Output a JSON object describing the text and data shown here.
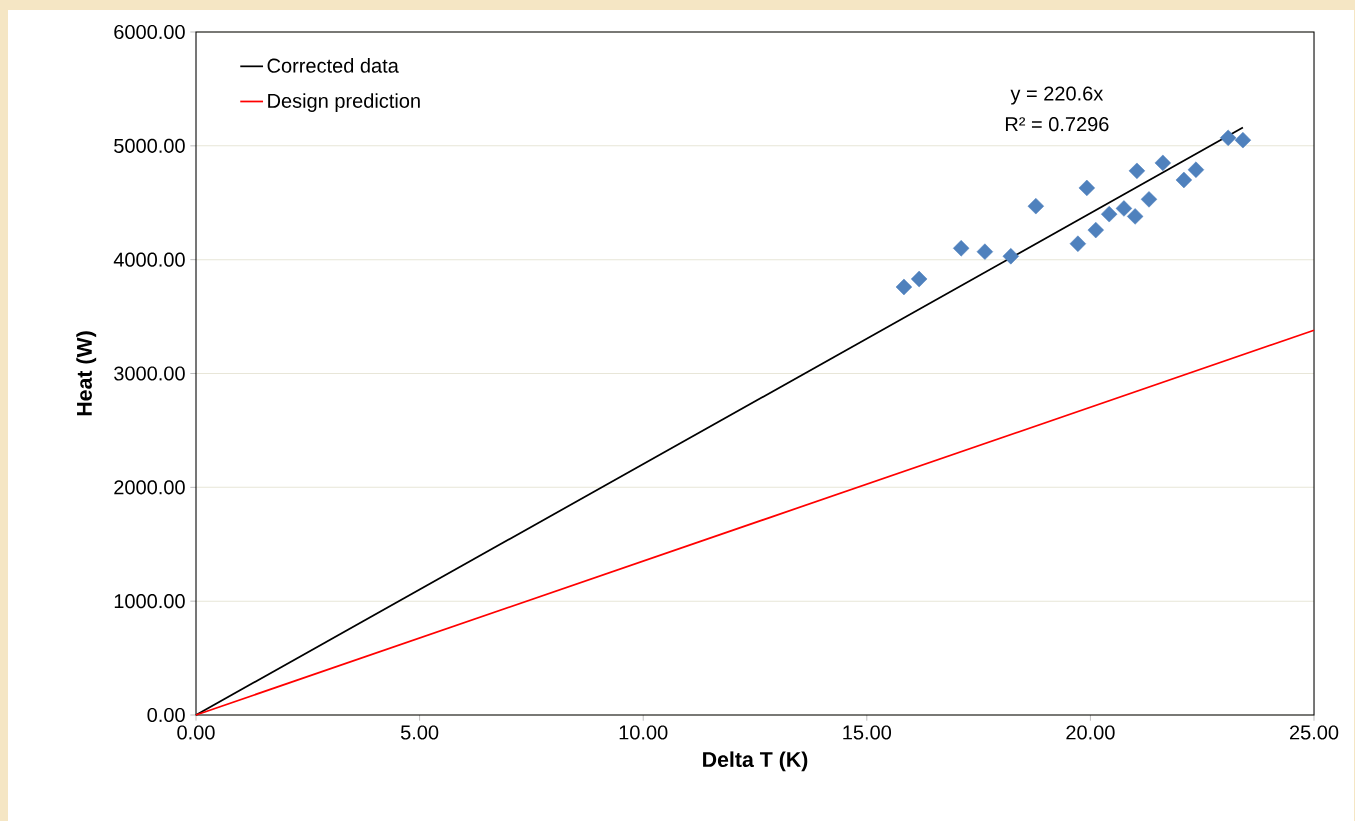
{
  "chart_data": {
    "type": "scatter",
    "xlabel": "Delta T (K)",
    "ylabel": "Heat (W)",
    "xlim": [
      0,
      25
    ],
    "ylim": [
      0,
      6000
    ],
    "xticks": [
      {
        "value": 0,
        "label": "0.00"
      },
      {
        "value": 5,
        "label": "5.00"
      },
      {
        "value": 10,
        "label": "10.00"
      },
      {
        "value": 15,
        "label": "15.00"
      },
      {
        "value": 20,
        "label": "20.00"
      },
      {
        "value": 25,
        "label": "25.00"
      }
    ],
    "yticks": [
      {
        "value": 0,
        "label": "0.00"
      },
      {
        "value": 1000,
        "label": "1000.00"
      },
      {
        "value": 2000,
        "label": "2000.00"
      },
      {
        "value": 3000,
        "label": "3000.00"
      },
      {
        "value": 4000,
        "label": "4000.00"
      },
      {
        "value": 5000,
        "label": "5000.00"
      },
      {
        "value": 6000,
        "label": "6000.00"
      }
    ],
    "grid": "y",
    "legend": "top left",
    "series": [
      {
        "marker": "diamond",
        "color": "#4f81bd",
        "x": [
          15.83,
          16.17,
          17.11,
          17.64,
          18.22,
          18.78,
          19.72,
          19.92,
          20.12,
          20.42,
          20.75,
          21.0,
          21.04,
          21.31,
          21.62,
          22.09,
          22.36,
          23.08,
          23.41
        ],
        "values": [
          3760,
          3830,
          4100,
          4070,
          4030,
          4470,
          4140,
          4630,
          4260,
          4400,
          4450,
          4380,
          4780,
          4530,
          4850,
          4700,
          4790,
          5070,
          5050
        ]
      },
      {
        "type": "line",
        "name": "Corrected data",
        "color": "#000000",
        "x": [
          0,
          23.41
        ],
        "values": [
          0,
          5160
        ]
      },
      {
        "type": "line",
        "name": "Design prediction",
        "color": "#ff0000",
        "x": [
          0,
          25
        ],
        "values": [
          0,
          3380
        ]
      }
    ],
    "annotations": [
      "y = 220.6x",
      "R² = 0.7296"
    ]
  }
}
